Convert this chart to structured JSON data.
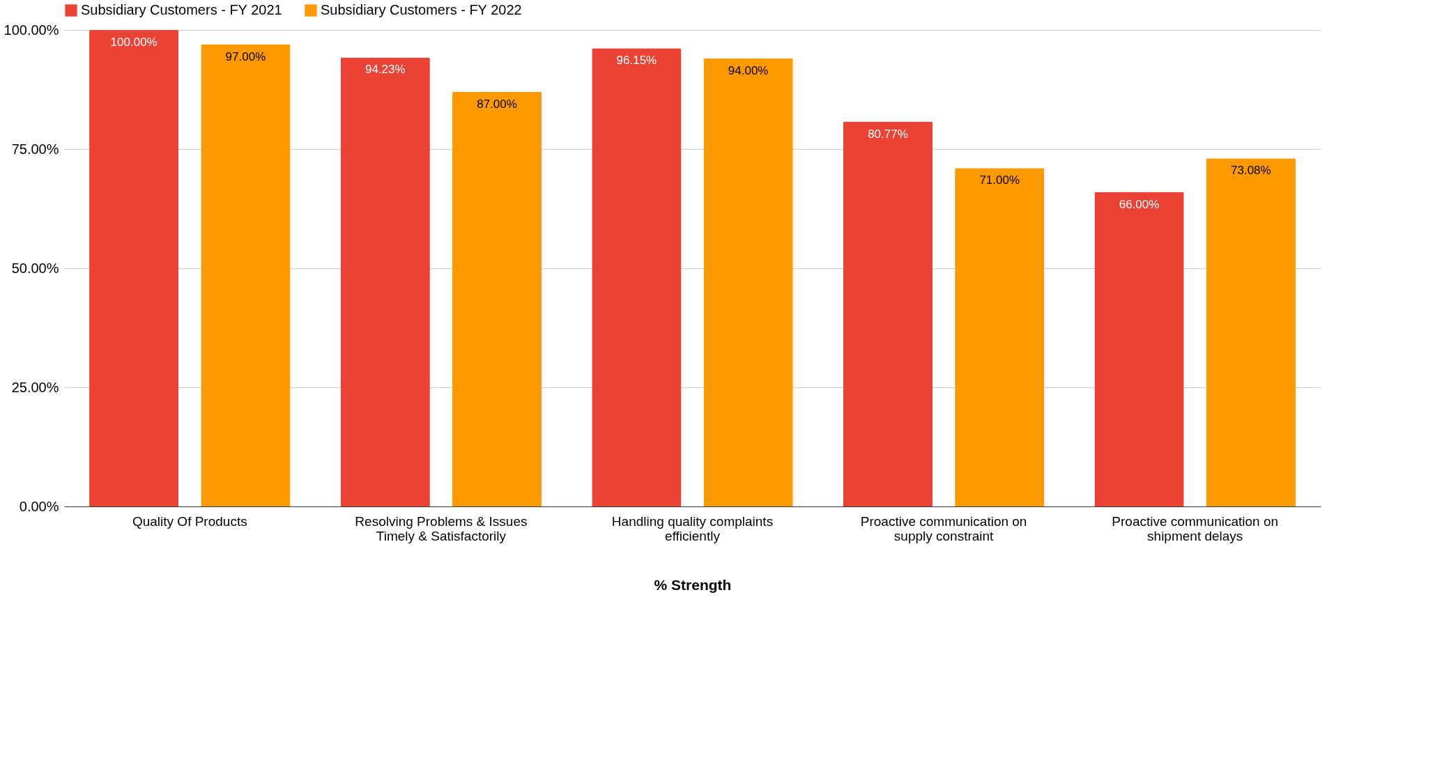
{
  "chart_data": {
    "type": "bar",
    "xlabel": "% Strength",
    "categories": [
      "Quality Of Products",
      "Resolving Problems & Issues Timely & Satisfactorily",
      "Handling quality complaints efficiently",
      "Proactive communication on supply constraint",
      "Proactive communication on shipment delays"
    ],
    "series": [
      {
        "name": "Subsidiary Customers - FY 2021",
        "color": "#ea4335",
        "values": [
          100,
          94.23,
          96.15,
          80.77,
          66
        ],
        "value_labels": [
          "100.00%",
          "94.23%",
          "96.15%",
          "80.77%",
          "66.00%"
        ]
      },
      {
        "name": "Subsidiary Customers - FY 2022",
        "color": "#ff9900",
        "values": [
          97,
          87,
          94,
          71,
          73.08
        ],
        "value_labels": [
          "97.00%",
          "87.00%",
          "94.00%",
          "71.00%",
          "73.08%"
        ]
      }
    ],
    "ylim": [
      0,
      100
    ],
    "yticks": [
      {
        "value": 0,
        "label": "0.00%"
      },
      {
        "value": 25,
        "label": "25.00%"
      },
      {
        "value": 50,
        "label": "50.00%"
      },
      {
        "value": 75,
        "label": "75.00%"
      },
      {
        "value": 100,
        "label": "100.00%"
      }
    ],
    "grid": "y",
    "legend": "top"
  }
}
